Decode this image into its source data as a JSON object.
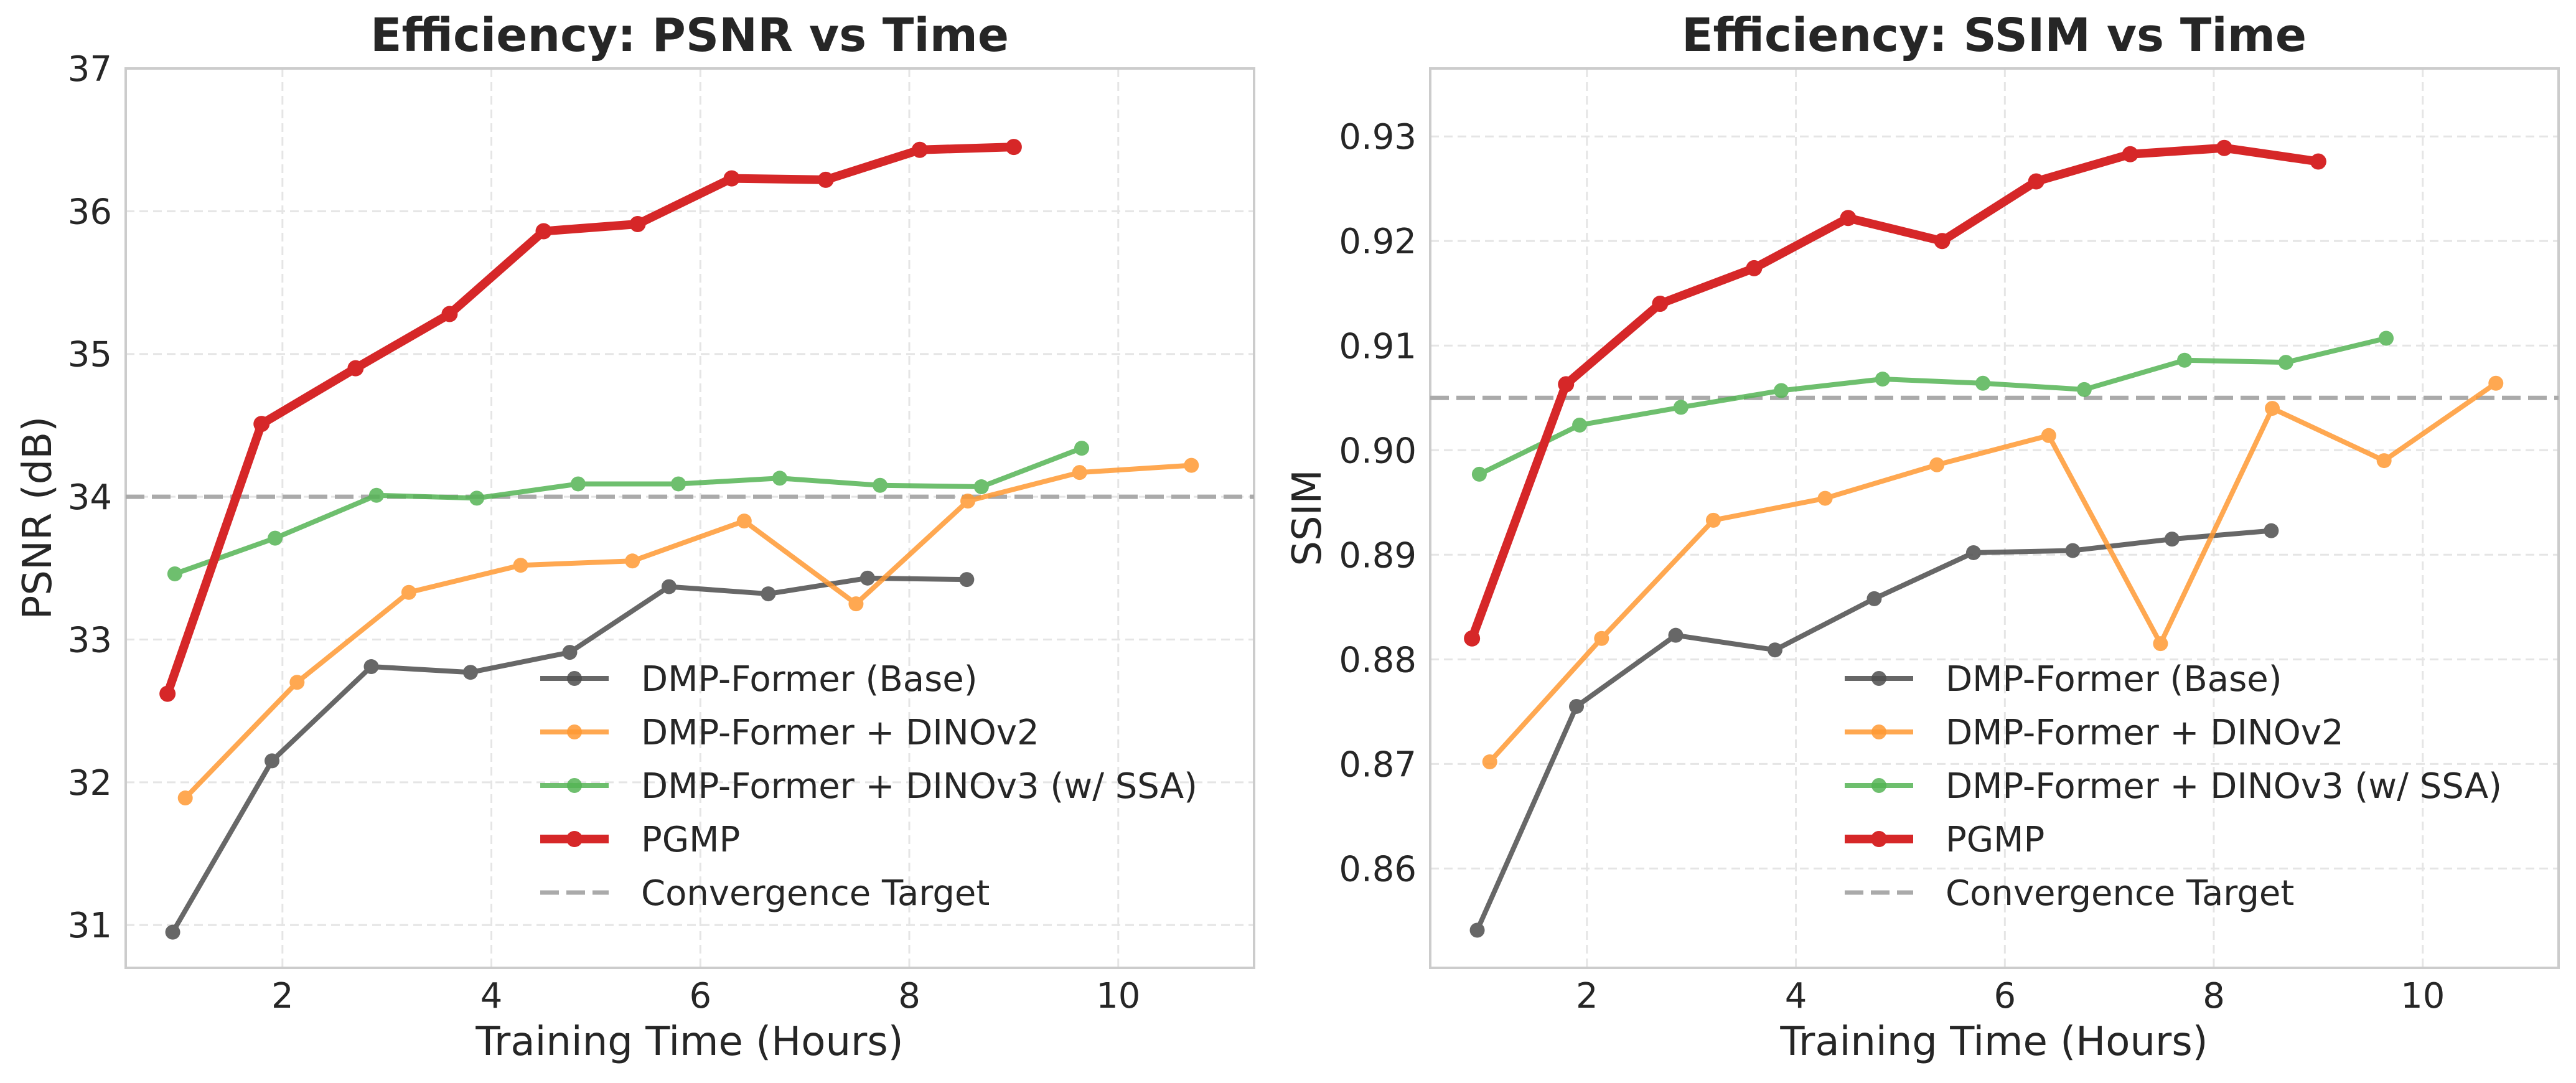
{
  "chart_data": [
    {
      "type": "line",
      "title": "Efficiency: PSNR vs Time",
      "xlabel": "Training Time (Hours)",
      "ylabel": "PSNR (dB)",
      "xlim": [
        0.5,
        11.3
      ],
      "ylim": [
        30.7,
        37.0
      ],
      "xticks": [
        2,
        4,
        6,
        8,
        10
      ],
      "yticks": [
        31,
        32,
        33,
        34,
        35,
        36,
        37
      ],
      "grid": true,
      "legend_position": "lower-right",
      "series": [
        {
          "name": "DMP-Former (Base)",
          "color": "#4d4d4d",
          "x": [
            0.95,
            1.9,
            2.85,
            3.8,
            4.75,
            5.7,
            6.65,
            7.6,
            8.55
          ],
          "y": [
            30.95,
            32.15,
            32.81,
            32.77,
            32.91,
            33.37,
            33.32,
            33.43,
            33.42
          ]
        },
        {
          "name": "DMP-Former + DINOv2",
          "color": "#ff9933",
          "x": [
            1.07,
            2.14,
            3.21,
            4.28,
            5.35,
            6.42,
            7.49,
            8.56,
            9.63,
            10.7
          ],
          "y": [
            31.89,
            32.7,
            33.33,
            33.52,
            33.55,
            33.83,
            33.25,
            33.97,
            34.17,
            34.22
          ]
        },
        {
          "name": "DMP-Former + DINOv3 (w/ SSA)",
          "color": "#55b455",
          "x": [
            0.97,
            1.93,
            2.9,
            3.86,
            4.83,
            5.79,
            6.76,
            7.72,
            8.69,
            9.65
          ],
          "y": [
            33.46,
            33.71,
            34.01,
            33.99,
            34.09,
            34.09,
            34.13,
            34.08,
            34.07,
            34.34
          ]
        },
        {
          "name": "PGMP",
          "color": "#d62728",
          "x": [
            0.9,
            1.8,
            2.7,
            3.6,
            4.5,
            5.4,
            6.3,
            7.2,
            8.1,
            9.0
          ],
          "y": [
            32.62,
            34.51,
            34.9,
            35.28,
            35.86,
            35.91,
            36.23,
            36.22,
            36.43,
            36.45
          ]
        }
      ],
      "reference_line": {
        "name": "Convergence Target",
        "y": 34.0,
        "color": "#aaaaaa"
      }
    },
    {
      "type": "line",
      "title": "Efficiency: SSIM vs Time",
      "xlabel": "Training Time (Hours)",
      "ylabel": "SSIM",
      "xlim": [
        0.5,
        11.3
      ],
      "ylim": [
        0.8505,
        0.9365
      ],
      "xticks": [
        2,
        4,
        6,
        8,
        10
      ],
      "yticks": [
        0.86,
        0.87,
        0.88,
        0.89,
        0.9,
        0.91,
        0.92,
        0.93
      ],
      "ytick_labels": [
        "0.86",
        "0.87",
        "0.88",
        "0.89",
        "0.90",
        "0.91",
        "0.92",
        "0.93"
      ],
      "grid": true,
      "legend_position": "lower-right",
      "series": [
        {
          "name": "DMP-Former (Base)",
          "color": "#4d4d4d",
          "x": [
            0.95,
            1.9,
            2.85,
            3.8,
            4.75,
            5.7,
            6.65,
            7.6,
            8.55
          ],
          "y": [
            0.8541,
            0.8755,
            0.8823,
            0.8809,
            0.8858,
            0.8902,
            0.8904,
            0.8915,
            0.8923
          ]
        },
        {
          "name": "DMP-Former + DINOv2",
          "color": "#ff9933",
          "x": [
            1.07,
            2.14,
            3.21,
            4.28,
            5.35,
            6.42,
            7.49,
            8.56,
            9.63,
            10.7
          ],
          "y": [
            0.8702,
            0.882,
            0.8933,
            0.8954,
            0.8986,
            0.9014,
            0.8815,
            0.904,
            0.899,
            0.9064
          ]
        },
        {
          "name": "DMP-Former + DINOv3 (w/ SSA)",
          "color": "#55b455",
          "x": [
            0.97,
            1.93,
            2.9,
            3.86,
            4.83,
            5.79,
            6.76,
            7.72,
            8.69,
            9.65
          ],
          "y": [
            0.8977,
            0.9024,
            0.9041,
            0.9057,
            0.9068,
            0.9064,
            0.9058,
            0.9086,
            0.9084,
            0.9107
          ]
        },
        {
          "name": "PGMP",
          "color": "#d62728",
          "x": [
            0.9,
            1.8,
            2.7,
            3.6,
            4.5,
            5.4,
            6.3,
            7.2,
            8.1,
            9.0
          ],
          "y": [
            0.882,
            0.9063,
            0.914,
            0.9174,
            0.9222,
            0.92,
            0.9257,
            0.9283,
            0.9289,
            0.9276
          ]
        }
      ],
      "reference_line": {
        "name": "Convergence Target",
        "y": 0.905,
        "color": "#aaaaaa"
      }
    }
  ]
}
